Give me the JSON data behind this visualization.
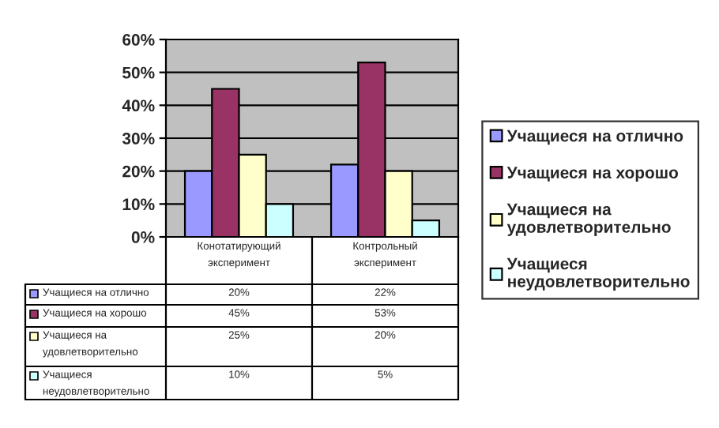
{
  "chart_data": {
    "type": "bar",
    "categories": [
      "Конотатирующий эксперимент",
      "Контрольный эксперимент"
    ],
    "series": [
      {
        "name": "Учащиеся на отлично",
        "color": "#9999ff",
        "values": [
          20,
          22
        ],
        "value_labels": [
          "20%",
          "22%"
        ]
      },
      {
        "name": "Учащиеся на хорошо",
        "color": "#993366",
        "values": [
          45,
          53
        ],
        "value_labels": [
          "45%",
          "53%"
        ]
      },
      {
        "name": "Учащиеся на удовлетворительно",
        "color": "#ffffcc",
        "values": [
          25,
          20
        ],
        "value_labels": [
          "25%",
          "20%"
        ]
      },
      {
        "name": "Учащиеся неудовлетворительно",
        "color": "#ccffff",
        "values": [
          10,
          5
        ],
        "value_labels": [
          "10%",
          "5%"
        ]
      }
    ],
    "ylim": [
      0,
      60
    ],
    "yticks": [
      {
        "value": 0,
        "label": "0%"
      },
      {
        "value": 10,
        "label": "10%"
      },
      {
        "value": 20,
        "label": "20%"
      },
      {
        "value": 30,
        "label": "30%"
      },
      {
        "value": 40,
        "label": "40%"
      },
      {
        "value": 50,
        "label": "50%"
      },
      {
        "value": 60,
        "label": "60%"
      }
    ],
    "grid": "y",
    "legend": "right"
  }
}
